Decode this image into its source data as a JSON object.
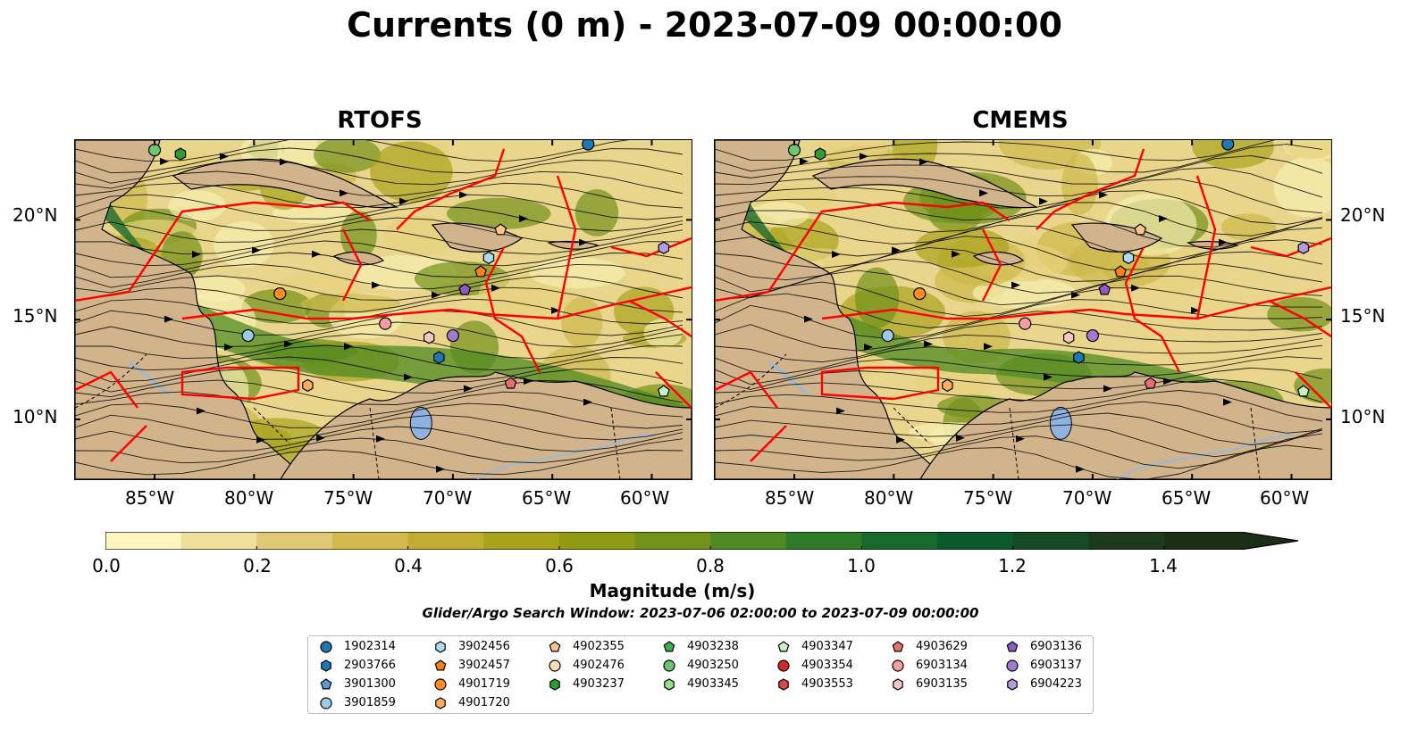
{
  "title": "Currents (0 m) - 2023-07-09 00:00:00",
  "panels": [
    {
      "title": "RTOFS"
    },
    {
      "title": "CMEMS"
    }
  ],
  "axes": {
    "lon_labels": [
      "85°W",
      "80°W",
      "75°W",
      "70°W",
      "65°W",
      "60°W"
    ],
    "lat_labels": [
      "20°N",
      "15°N",
      "10°N"
    ],
    "lon_range": [
      -89,
      -58
    ],
    "lat_range": [
      7,
      24
    ]
  },
  "colorbar": {
    "label": "Magnitude (m/s)",
    "ticks": [
      "0.0",
      "0.2",
      "0.4",
      "0.6",
      "0.8",
      "1.0",
      "1.2",
      "1.4"
    ],
    "range": [
      0,
      1.5
    ],
    "colors": [
      "#fdf6c0",
      "#eee09a",
      "#e0c975",
      "#d4b94f",
      "#c2ad33",
      "#a9a31c",
      "#8f9b12",
      "#72921a",
      "#4f8a22",
      "#2e7a28",
      "#17692c",
      "#0c5a2c",
      "#164a24",
      "#1d3a1c",
      "#1c2e16"
    ]
  },
  "search_window": "Glider/Argo Search Window: 2023-07-06 02:00:00 to 2023-07-09 00:00:00",
  "legend": [
    {
      "id": "1902314",
      "marker": "circle",
      "color": "#1f77b4"
    },
    {
      "id": "2903766",
      "marker": "hexagon",
      "color": "#1f77b4"
    },
    {
      "id": "3901300",
      "marker": "pentagon",
      "color": "#5a9bd5"
    },
    {
      "id": "3901859",
      "marker": "circle",
      "color": "#9ccbee"
    },
    {
      "id": "3902456",
      "marker": "hexagon",
      "color": "#aed8f4"
    },
    {
      "id": "3902457",
      "marker": "pentagon",
      "color": "#ff7f0e"
    },
    {
      "id": "4901719",
      "marker": "circle",
      "color": "#ff8c24"
    },
    {
      "id": "4901720",
      "marker": "hexagon",
      "color": "#ffae5e"
    },
    {
      "id": "4902355",
      "marker": "pentagon",
      "color": "#ffc48a"
    },
    {
      "id": "4902476",
      "marker": "circle",
      "color": "#ffdcb6"
    },
    {
      "id": "4903237",
      "marker": "hexagon",
      "color": "#2ca02c"
    },
    {
      "id": "4903238",
      "marker": "pentagon",
      "color": "#3cb04c"
    },
    {
      "id": "4903250",
      "marker": "circle",
      "color": "#6cc870"
    },
    {
      "id": "4903345",
      "marker": "hexagon",
      "color": "#98df8a"
    },
    {
      "id": "4903347",
      "marker": "pentagon",
      "color": "#c8f5c0"
    },
    {
      "id": "4903354",
      "marker": "circle",
      "color": "#d62728"
    },
    {
      "id": "4903553",
      "marker": "hexagon",
      "color": "#e04848"
    },
    {
      "id": "4903629",
      "marker": "pentagon",
      "color": "#e87070"
    },
    {
      "id": "6903134",
      "marker": "circle",
      "color": "#f4a0a0"
    },
    {
      "id": "6903135",
      "marker": "hexagon",
      "color": "#f8c8c0"
    },
    {
      "id": "6903136",
      "marker": "pentagon",
      "color": "#8c5cc4"
    },
    {
      "id": "6903137",
      "marker": "circle",
      "color": "#a07cd0"
    },
    {
      "id": "6904223",
      "marker": "hexagon",
      "color": "#b49ce0"
    }
  ]
}
